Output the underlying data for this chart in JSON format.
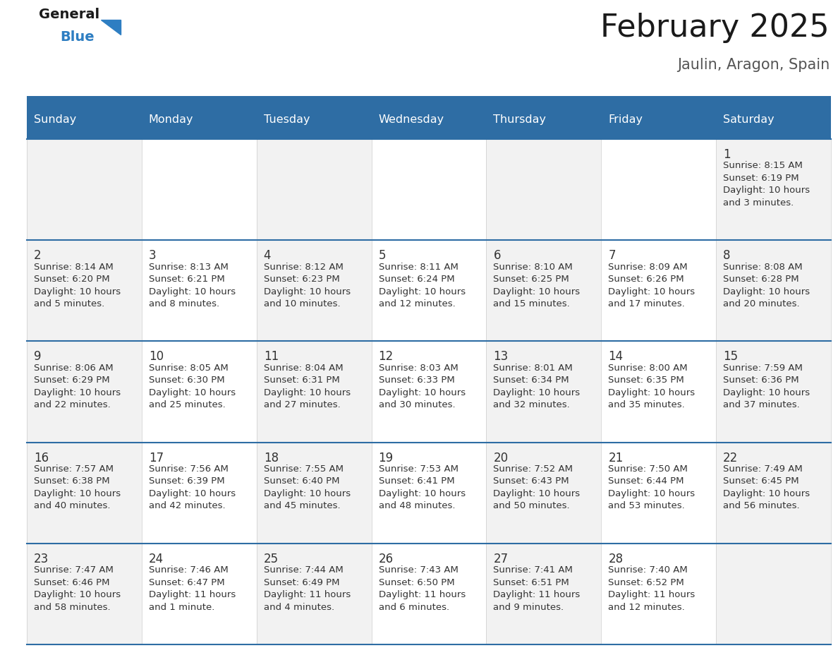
{
  "title": "February 2025",
  "subtitle": "Jaulin, Aragon, Spain",
  "header_bg": "#2E6DA4",
  "header_text_color": "#FFFFFF",
  "day_headers": [
    "Sunday",
    "Monday",
    "Tuesday",
    "Wednesday",
    "Thursday",
    "Friday",
    "Saturday"
  ],
  "title_color": "#1a1a1a",
  "subtitle_color": "#555555",
  "day_num_color": "#333333",
  "info_color": "#333333",
  "line_color": "#2E6DA4",
  "cell_bg_even": "#F2F2F2",
  "cell_bg_odd": "#FFFFFF",
  "days": [
    {
      "date": 1,
      "col": 6,
      "row": 0,
      "sunrise": "8:15 AM",
      "sunset": "6:19 PM",
      "daylight": "10 hours",
      "daylight2": "and 3 minutes."
    },
    {
      "date": 2,
      "col": 0,
      "row": 1,
      "sunrise": "8:14 AM",
      "sunset": "6:20 PM",
      "daylight": "10 hours",
      "daylight2": "and 5 minutes."
    },
    {
      "date": 3,
      "col": 1,
      "row": 1,
      "sunrise": "8:13 AM",
      "sunset": "6:21 PM",
      "daylight": "10 hours",
      "daylight2": "and 8 minutes."
    },
    {
      "date": 4,
      "col": 2,
      "row": 1,
      "sunrise": "8:12 AM",
      "sunset": "6:23 PM",
      "daylight": "10 hours",
      "daylight2": "and 10 minutes."
    },
    {
      "date": 5,
      "col": 3,
      "row": 1,
      "sunrise": "8:11 AM",
      "sunset": "6:24 PM",
      "daylight": "10 hours",
      "daylight2": "and 12 minutes."
    },
    {
      "date": 6,
      "col": 4,
      "row": 1,
      "sunrise": "8:10 AM",
      "sunset": "6:25 PM",
      "daylight": "10 hours",
      "daylight2": "and 15 minutes."
    },
    {
      "date": 7,
      "col": 5,
      "row": 1,
      "sunrise": "8:09 AM",
      "sunset": "6:26 PM",
      "daylight": "10 hours",
      "daylight2": "and 17 minutes."
    },
    {
      "date": 8,
      "col": 6,
      "row": 1,
      "sunrise": "8:08 AM",
      "sunset": "6:28 PM",
      "daylight": "10 hours",
      "daylight2": "and 20 minutes."
    },
    {
      "date": 9,
      "col": 0,
      "row": 2,
      "sunrise": "8:06 AM",
      "sunset": "6:29 PM",
      "daylight": "10 hours",
      "daylight2": "and 22 minutes."
    },
    {
      "date": 10,
      "col": 1,
      "row": 2,
      "sunrise": "8:05 AM",
      "sunset": "6:30 PM",
      "daylight": "10 hours",
      "daylight2": "and 25 minutes."
    },
    {
      "date": 11,
      "col": 2,
      "row": 2,
      "sunrise": "8:04 AM",
      "sunset": "6:31 PM",
      "daylight": "10 hours",
      "daylight2": "and 27 minutes."
    },
    {
      "date": 12,
      "col": 3,
      "row": 2,
      "sunrise": "8:03 AM",
      "sunset": "6:33 PM",
      "daylight": "10 hours",
      "daylight2": "and 30 minutes."
    },
    {
      "date": 13,
      "col": 4,
      "row": 2,
      "sunrise": "8:01 AM",
      "sunset": "6:34 PM",
      "daylight": "10 hours",
      "daylight2": "and 32 minutes."
    },
    {
      "date": 14,
      "col": 5,
      "row": 2,
      "sunrise": "8:00 AM",
      "sunset": "6:35 PM",
      "daylight": "10 hours",
      "daylight2": "and 35 minutes."
    },
    {
      "date": 15,
      "col": 6,
      "row": 2,
      "sunrise": "7:59 AM",
      "sunset": "6:36 PM",
      "daylight": "10 hours",
      "daylight2": "and 37 minutes."
    },
    {
      "date": 16,
      "col": 0,
      "row": 3,
      "sunrise": "7:57 AM",
      "sunset": "6:38 PM",
      "daylight": "10 hours",
      "daylight2": "and 40 minutes."
    },
    {
      "date": 17,
      "col": 1,
      "row": 3,
      "sunrise": "7:56 AM",
      "sunset": "6:39 PM",
      "daylight": "10 hours",
      "daylight2": "and 42 minutes."
    },
    {
      "date": 18,
      "col": 2,
      "row": 3,
      "sunrise": "7:55 AM",
      "sunset": "6:40 PM",
      "daylight": "10 hours",
      "daylight2": "and 45 minutes."
    },
    {
      "date": 19,
      "col": 3,
      "row": 3,
      "sunrise": "7:53 AM",
      "sunset": "6:41 PM",
      "daylight": "10 hours",
      "daylight2": "and 48 minutes."
    },
    {
      "date": 20,
      "col": 4,
      "row": 3,
      "sunrise": "7:52 AM",
      "sunset": "6:43 PM",
      "daylight": "10 hours",
      "daylight2": "and 50 minutes."
    },
    {
      "date": 21,
      "col": 5,
      "row": 3,
      "sunrise": "7:50 AM",
      "sunset": "6:44 PM",
      "daylight": "10 hours",
      "daylight2": "and 53 minutes."
    },
    {
      "date": 22,
      "col": 6,
      "row": 3,
      "sunrise": "7:49 AM",
      "sunset": "6:45 PM",
      "daylight": "10 hours",
      "daylight2": "and 56 minutes."
    },
    {
      "date": 23,
      "col": 0,
      "row": 4,
      "sunrise": "7:47 AM",
      "sunset": "6:46 PM",
      "daylight": "10 hours",
      "daylight2": "and 58 minutes."
    },
    {
      "date": 24,
      "col": 1,
      "row": 4,
      "sunrise": "7:46 AM",
      "sunset": "6:47 PM",
      "daylight": "11 hours",
      "daylight2": "and 1 minute."
    },
    {
      "date": 25,
      "col": 2,
      "row": 4,
      "sunrise": "7:44 AM",
      "sunset": "6:49 PM",
      "daylight": "11 hours",
      "daylight2": "and 4 minutes."
    },
    {
      "date": 26,
      "col": 3,
      "row": 4,
      "sunrise": "7:43 AM",
      "sunset": "6:50 PM",
      "daylight": "11 hours",
      "daylight2": "and 6 minutes."
    },
    {
      "date": 27,
      "col": 4,
      "row": 4,
      "sunrise": "7:41 AM",
      "sunset": "6:51 PM",
      "daylight": "11 hours",
      "daylight2": "and 9 minutes."
    },
    {
      "date": 28,
      "col": 5,
      "row": 4,
      "sunrise": "7:40 AM",
      "sunset": "6:52 PM",
      "daylight": "11 hours",
      "daylight2": "and 12 minutes."
    }
  ]
}
